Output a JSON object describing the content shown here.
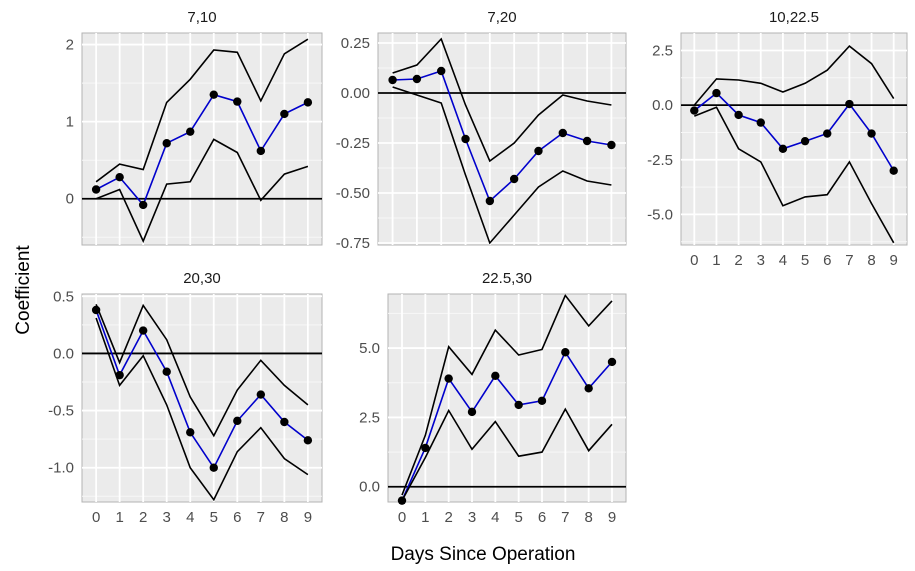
{
  "figure": {
    "xlabel": "Days Since Operation",
    "ylabel": "Coefficient"
  },
  "colors": {
    "panel_bg": "#ebebeb",
    "grid_major": "#ffffff",
    "estimate_line": "#0000cc",
    "points": "#000000",
    "bounds": "#000000",
    "zero_line": "#000000"
  },
  "chart_data": [
    {
      "type": "line",
      "title": "7,10",
      "x": [
        0,
        1,
        2,
        3,
        4,
        5,
        6,
        7,
        8,
        9
      ],
      "ylim": [
        -0.6,
        2.15
      ],
      "yticks": [
        0,
        1,
        2
      ],
      "ytick_labels": [
        "0",
        "1",
        "2"
      ],
      "show_x_ticks": false,
      "series": [
        {
          "role": "estimate",
          "values": [
            0.12,
            0.28,
            -0.08,
            0.72,
            0.87,
            1.35,
            1.26,
            0.62,
            1.1,
            1.25
          ]
        },
        {
          "role": "upper",
          "values": [
            0.22,
            0.45,
            0.38,
            1.25,
            1.55,
            1.93,
            1.9,
            1.27,
            1.88,
            2.07
          ]
        },
        {
          "role": "lower",
          "values": [
            0.0,
            0.12,
            -0.55,
            0.19,
            0.22,
            0.77,
            0.6,
            -0.02,
            0.32,
            0.42
          ]
        }
      ]
    },
    {
      "type": "line",
      "title": "7,20",
      "x": [
        0,
        1,
        2,
        3,
        4,
        5,
        6,
        7,
        8,
        9
      ],
      "ylim": [
        -0.76,
        0.3
      ],
      "yticks": [
        0.25,
        0,
        -0.25,
        -0.5,
        -0.75
      ],
      "ytick_labels": [
        "0.25",
        "0.00",
        "-0.25",
        "-0.50",
        "-0.75"
      ],
      "show_x_ticks": false,
      "series": [
        {
          "role": "estimate",
          "values": [
            0.065,
            0.07,
            0.11,
            -0.23,
            -0.54,
            -0.43,
            -0.29,
            -0.2,
            -0.24,
            -0.26
          ]
        },
        {
          "role": "upper",
          "values": [
            0.1,
            0.14,
            0.27,
            -0.06,
            -0.34,
            -0.25,
            -0.11,
            -0.01,
            -0.04,
            -0.06
          ]
        },
        {
          "role": "lower",
          "values": [
            0.03,
            -0.01,
            -0.05,
            -0.41,
            -0.75,
            -0.61,
            -0.47,
            -0.39,
            -0.44,
            -0.46
          ]
        }
      ]
    },
    {
      "type": "line",
      "title": "10,22.5",
      "x": [
        0,
        1,
        2,
        3,
        4,
        5,
        6,
        7,
        8,
        9
      ],
      "ylim": [
        -6.4,
        3.3
      ],
      "yticks": [
        2.5,
        0,
        -2.5,
        -5
      ],
      "ytick_labels": [
        "2.5",
        "0.0",
        "-2.5",
        "-5.0"
      ],
      "show_x_ticks": true,
      "series": [
        {
          "role": "estimate",
          "values": [
            -0.25,
            0.55,
            -0.45,
            -0.8,
            -2.0,
            -1.65,
            -1.3,
            0.05,
            -1.3,
            -3.0
          ]
        },
        {
          "role": "upper",
          "values": [
            0.0,
            1.2,
            1.15,
            1.0,
            0.6,
            1.0,
            1.6,
            2.7,
            1.9,
            0.3
          ]
        },
        {
          "role": "lower",
          "values": [
            -0.5,
            -0.1,
            -2.0,
            -2.6,
            -4.6,
            -4.2,
            -4.1,
            -2.6,
            -4.5,
            -6.3
          ]
        }
      ]
    },
    {
      "type": "line",
      "title": "20,30",
      "x": [
        0,
        1,
        2,
        3,
        4,
        5,
        6,
        7,
        8,
        9
      ],
      "ylim": [
        -1.3,
        0.52
      ],
      "yticks": [
        0.5,
        0,
        -0.5,
        -1.0
      ],
      "ytick_labels": [
        "0.5",
        "0.0",
        "-0.5",
        "-1.0"
      ],
      "show_x_ticks": true,
      "series": [
        {
          "role": "estimate",
          "values": [
            0.38,
            -0.19,
            0.2,
            -0.16,
            -0.69,
            -1.0,
            -0.59,
            -0.36,
            -0.6,
            -0.76
          ]
        },
        {
          "role": "upper",
          "values": [
            0.43,
            -0.08,
            0.42,
            0.12,
            -0.38,
            -0.72,
            -0.32,
            -0.06,
            -0.28,
            -0.45
          ]
        },
        {
          "role": "lower",
          "values": [
            0.31,
            -0.28,
            -0.02,
            -0.45,
            -1.0,
            -1.28,
            -0.86,
            -0.65,
            -0.92,
            -1.06
          ]
        }
      ]
    },
    {
      "type": "line",
      "title": "22.5,30",
      "x": [
        0,
        1,
        2,
        3,
        4,
        5,
        6,
        7,
        8,
        9
      ],
      "ylim": [
        -0.55,
        6.95
      ],
      "yticks": [
        0,
        2.5,
        5
      ],
      "ytick_labels": [
        "0.0",
        "2.5",
        "5.0"
      ],
      "show_x_ticks": true,
      "series": [
        {
          "role": "estimate",
          "values": [
            -0.5,
            1.4,
            3.9,
            2.7,
            4.0,
            2.95,
            3.1,
            4.85,
            3.55,
            4.5
          ]
        },
        {
          "role": "upper",
          "values": [
            -0.3,
            1.85,
            5.05,
            4.05,
            5.65,
            4.75,
            4.95,
            6.9,
            5.8,
            6.7
          ]
        },
        {
          "role": "lower",
          "values": [
            -0.5,
            1.05,
            2.75,
            1.35,
            2.35,
            1.1,
            1.25,
            2.8,
            1.3,
            2.25
          ]
        }
      ]
    }
  ]
}
